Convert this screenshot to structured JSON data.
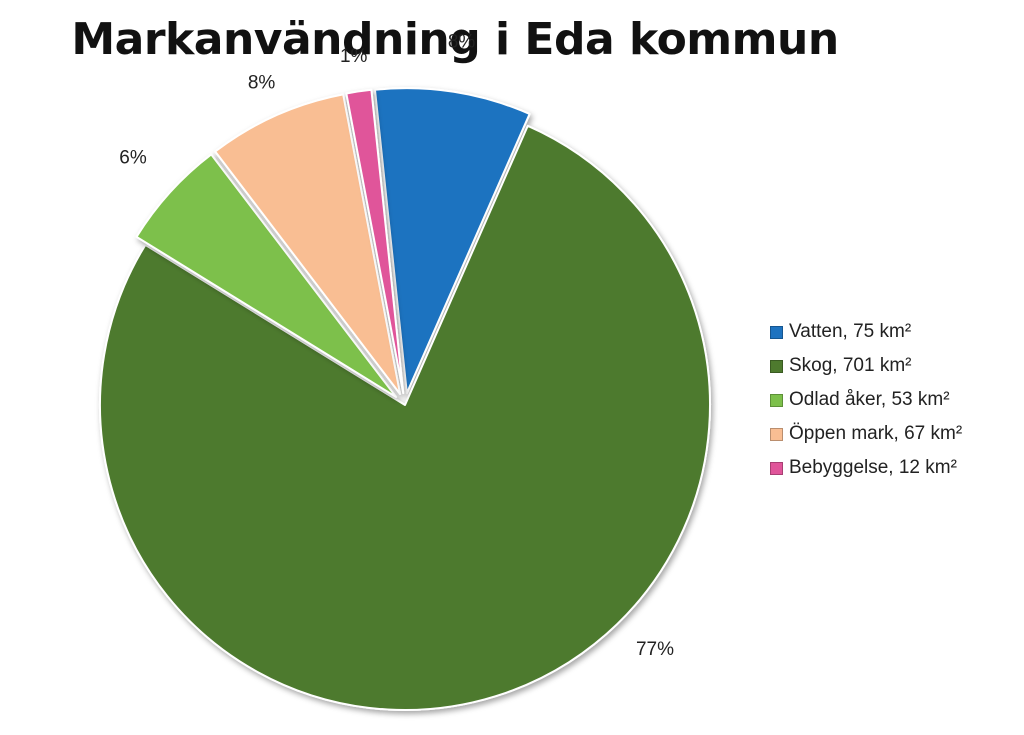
{
  "chart_data": {
    "type": "pie",
    "title": "Markanvändning i Eda kommun",
    "unit": "km²",
    "slices": [
      {
        "name": "Vatten",
        "value": 75,
        "percent_label": "8%",
        "color": "#1E73C0",
        "legend": "Vatten, 75 km²",
        "exploded": true
      },
      {
        "name": "Skog",
        "value": 701,
        "percent_label": "77%",
        "color": "#4E7A2E",
        "legend": "Skog, 701 km²",
        "exploded": false
      },
      {
        "name": "Odlad åker",
        "value": 53,
        "percent_label": "6%",
        "color": "#7DC04B",
        "legend": "Odlad åker, 53 km²",
        "exploded": true
      },
      {
        "name": "Öppen mark",
        "value": 67,
        "percent_label": "8%",
        "color": "#F9BE93",
        "legend": "Öppen mark, 67 km²",
        "exploded": true
      },
      {
        "name": "Bebyggelse",
        "value": 12,
        "percent_label": "1%",
        "color": "#E0559A",
        "legend": "Bebyggelse, 12 km²",
        "exploded": true
      }
    ],
    "legend_position": "right"
  }
}
